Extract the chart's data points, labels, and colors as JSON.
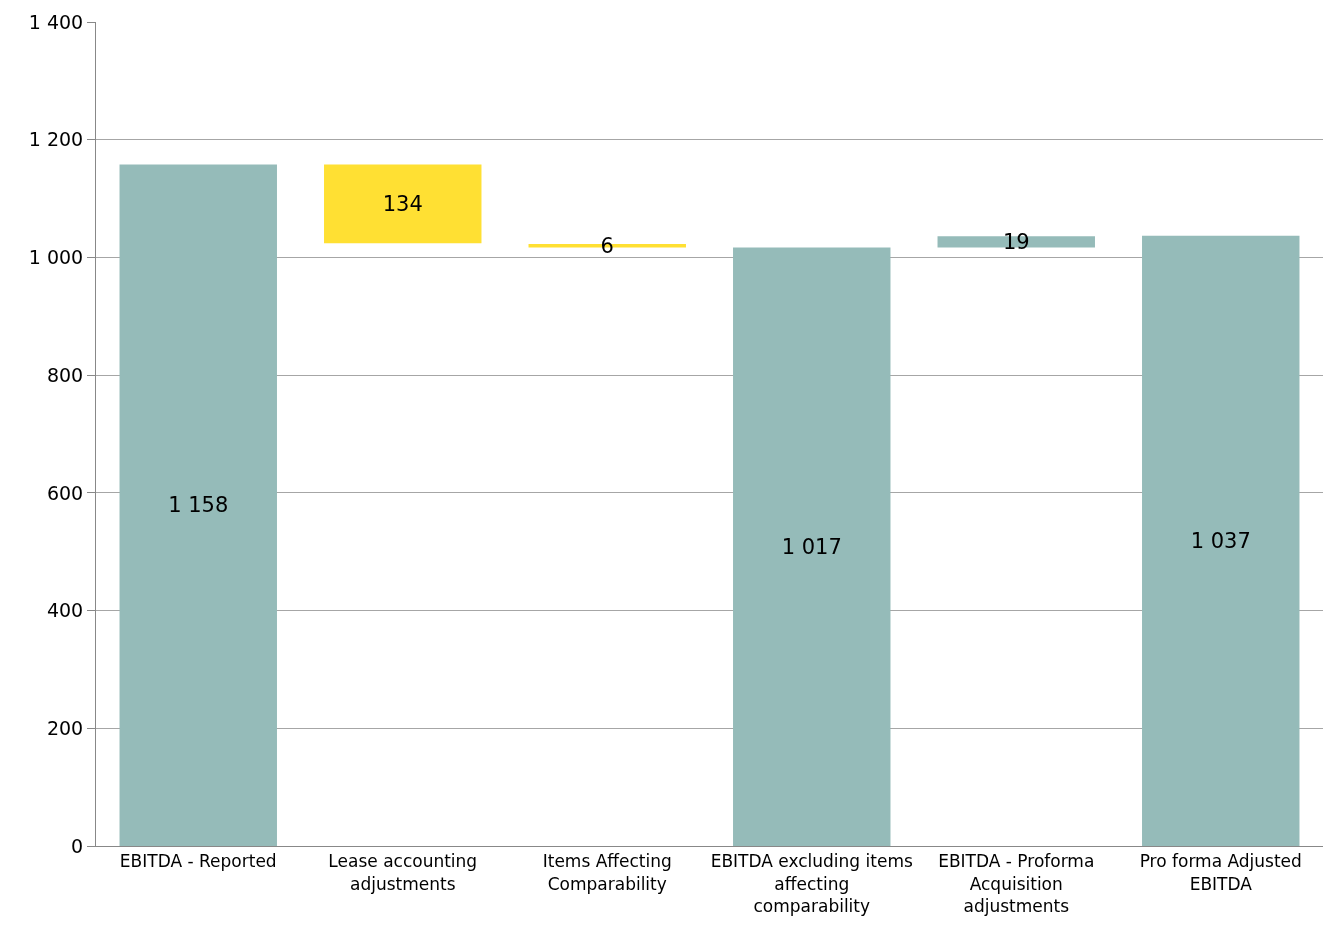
{
  "chart_data": {
    "type": "bar",
    "categories": [
      "EBITDA - Reported",
      "Lease accounting adjustments",
      "Items Affecting Comparability",
      "EBITDA excluding items affecting comparability",
      "EBITDA - Proforma Acquisition adjustments",
      "Pro forma Adjusted EBITDA"
    ],
    "values": [
      1158,
      134,
      6,
      1017,
      19,
      1037
    ],
    "base": [
      0,
      1024,
      1017,
      0,
      1017,
      0
    ],
    "colors": [
      "#95bbb9",
      "#ffe033",
      "#ffe033",
      "#95bbb9",
      "#95bbb9",
      "#95bbb9"
    ],
    "value_labels": [
      "1 158",
      "134",
      "6",
      "1 017",
      "19",
      "1 037"
    ],
    "ylim": [
      0,
      1400
    ],
    "yticks": [
      0,
      200,
      400,
      600,
      800,
      {
        "value": 1000,
        "label": "1 000"
      },
      {
        "value": 1200,
        "label": "1 200"
      },
      {
        "value": 1400,
        "label": "1 400"
      }
    ],
    "grid": "y"
  }
}
